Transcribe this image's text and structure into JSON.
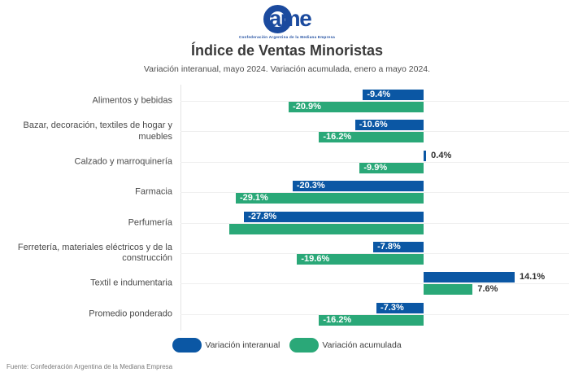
{
  "logo": {
    "text": "ame",
    "tagline": "Confederación Argentina de la Mediana Empresa"
  },
  "colors": {
    "interanual": "#0b57a4",
    "acumulada": "#2aa878",
    "logo_blue": "#1b4a9e"
  },
  "footer": {
    "source": "Fuente: Confederación Argentina de la Mediana Empresa"
  },
  "chart_data": {
    "type": "bar",
    "orientation": "horizontal",
    "title": "Índice de Ventas Minoristas",
    "subtitle": "Variación interanual, mayo 2024. Variación acumulada, enero a mayo 2024.",
    "unit": "%",
    "xlim": [
      -37.5,
      23
    ],
    "grid": "horizontal-category-lines",
    "legend_position": "bottom",
    "series_names": [
      "Variación interanual",
      "Variación acumulada"
    ],
    "rows": [
      {
        "category": "Alimentos y bebidas",
        "interanual": -9.4,
        "interanual_label": "-9.4%",
        "acumulada": -20.9,
        "acumulada_label": "-20.9%"
      },
      {
        "category": "Bazar, decoración, textiles de hogar y muebles",
        "interanual": -10.6,
        "interanual_label": "-10.6%",
        "acumulada": -16.2,
        "acumulada_label": "-16.2%"
      },
      {
        "category": "Calzado y marroquinería",
        "interanual": 0.4,
        "interanual_label": "0.4%",
        "acumulada": -9.9,
        "acumulada_label": "-9.9%"
      },
      {
        "category": "Farmacia",
        "interanual": -20.3,
        "interanual_label": "-20.3%",
        "acumulada": -29.1,
        "acumulada_label": "-29.1%"
      },
      {
        "category": "Perfumería",
        "interanual": -27.8,
        "interanual_label": "-27.8%",
        "acumulada": -30.1,
        "acumulada_label": ""
      },
      {
        "category": "Ferretería, materiales eléctricos y de la construcción",
        "interanual": -7.8,
        "interanual_label": "-7.8%",
        "acumulada": -19.6,
        "acumulada_label": "-19.6%"
      },
      {
        "category": "Textil e indumentaria",
        "interanual": 14.1,
        "interanual_label": "14.1%",
        "acumulada": 7.6,
        "acumulada_label": "7.6%"
      },
      {
        "category": "Promedio ponderado",
        "interanual": -7.3,
        "interanual_label": "-7.3%",
        "acumulada": -16.2,
        "acumulada_label": "-16.2%"
      }
    ]
  }
}
